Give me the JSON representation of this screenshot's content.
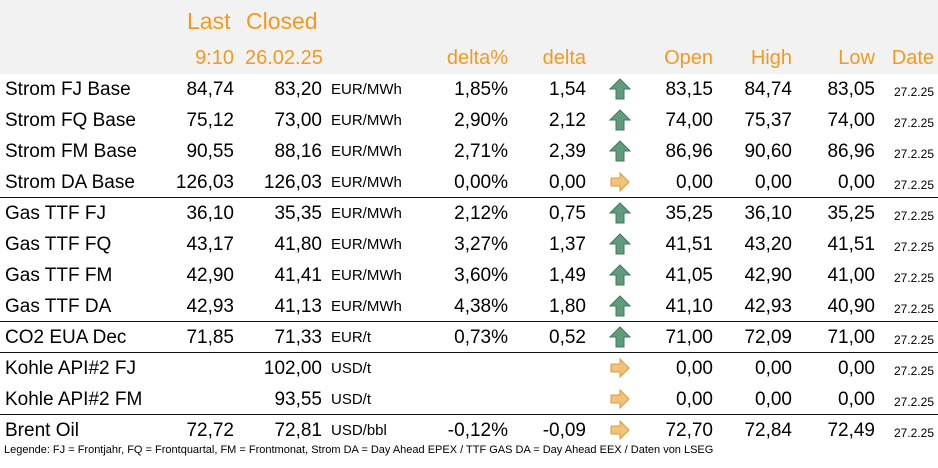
{
  "header": {
    "last_label": "Last",
    "closed_label": "Closed",
    "last_time": "9:10",
    "closed_date": "26.02.25",
    "delta_pct_label": "delta%",
    "delta_label": "delta",
    "open_label": "Open",
    "high_label": "High",
    "low_label": "Low",
    "date_label": "Date"
  },
  "colors": {
    "header_accent": "#f39a1e",
    "arrow_up": "#5f9b7c",
    "arrow_right": "#f2c278",
    "header_background": "#f2f2f2"
  },
  "rows": [
    {
      "name": "Strom FJ Base",
      "last": "84,74",
      "closed": "83,20",
      "unit": "EUR/MWh",
      "delta_pct": "1,85%",
      "delta": "1,54",
      "trend": "up",
      "open": "83,15",
      "high": "84,74",
      "low": "83,05",
      "date": "27.2.25"
    },
    {
      "name": "Strom FQ Base",
      "last": "75,12",
      "closed": "73,00",
      "unit": "EUR/MWh",
      "delta_pct": "2,90%",
      "delta": "2,12",
      "trend": "up",
      "open": "74,00",
      "high": "75,37",
      "low": "74,00",
      "date": "27.2.25"
    },
    {
      "name": "Strom FM Base",
      "last": "90,55",
      "closed": "88,16",
      "unit": "EUR/MWh",
      "delta_pct": "2,71%",
      "delta": "2,39",
      "trend": "up",
      "open": "86,96",
      "high": "90,60",
      "low": "86,96",
      "date": "27.2.25"
    },
    {
      "name": "Strom DA Base",
      "last": "126,03",
      "closed": "126,03",
      "unit": "EUR/MWh",
      "delta_pct": "0,00%",
      "delta": "0,00",
      "trend": "flat",
      "open": "0,00",
      "high": "0,00",
      "low": "0,00",
      "date": "27.2.25"
    },
    {
      "name": "Gas TTF FJ",
      "last": "36,10",
      "closed": "35,35",
      "unit": "EUR/MWh",
      "delta_pct": "2,12%",
      "delta": "0,75",
      "trend": "up",
      "open": "35,25",
      "high": "36,10",
      "low": "35,25",
      "date": "27.2.25"
    },
    {
      "name": "Gas TTF FQ",
      "last": "43,17",
      "closed": "41,80",
      "unit": "EUR/MWh",
      "delta_pct": "3,27%",
      "delta": "1,37",
      "trend": "up",
      "open": "41,51",
      "high": "43,20",
      "low": "41,51",
      "date": "27.2.25"
    },
    {
      "name": "Gas TTF FM",
      "last": "42,90",
      "closed": "41,41",
      "unit": "EUR/MWh",
      "delta_pct": "3,60%",
      "delta": "1,49",
      "trend": "up",
      "open": "41,05",
      "high": "42,90",
      "low": "41,00",
      "date": "27.2.25"
    },
    {
      "name": "Gas TTF DA",
      "last": "42,93",
      "closed": "41,13",
      "unit": "EUR/MWh",
      "delta_pct": "4,38%",
      "delta": "1,80",
      "trend": "up",
      "open": "41,10",
      "high": "42,93",
      "low": "40,90",
      "date": "27.2.25"
    },
    {
      "name": "CO2 EUA Dec",
      "last": "71,85",
      "closed": "71,33",
      "unit": "EUR/t",
      "delta_pct": "0,73%",
      "delta": "0,52",
      "trend": "up",
      "open": "71,00",
      "high": "72,09",
      "low": "71,00",
      "date": "27.2.25"
    },
    {
      "name": "Kohle API#2 FJ",
      "last": "",
      "closed": "102,00",
      "unit": "USD/t",
      "delta_pct": "",
      "delta": "",
      "trend": "flat",
      "open": "0,00",
      "high": "0,00",
      "low": "0,00",
      "date": "27.2.25"
    },
    {
      "name": "Kohle API#2 FM",
      "last": "",
      "closed": "93,55",
      "unit": "USD/t",
      "delta_pct": "",
      "delta": "",
      "trend": "flat",
      "open": "0,00",
      "high": "0,00",
      "low": "0,00",
      "date": "27.2.25"
    },
    {
      "name": "Brent Oil",
      "last": "72,72",
      "closed": "72,81",
      "unit": "USD/bbl",
      "delta_pct": "-0,12%",
      "delta": "-0,09",
      "trend": "flat",
      "open": "72,70",
      "high": "72,84",
      "low": "72,49",
      "date": "27.2.25"
    }
  ],
  "legend": "Legende: FJ = Frontjahr, FQ = Frontquartal, FM = Frontmonat, Strom DA = Day Ahead EPEX / TTF GAS DA = Day Ahead EEX / Daten von LSEG"
}
